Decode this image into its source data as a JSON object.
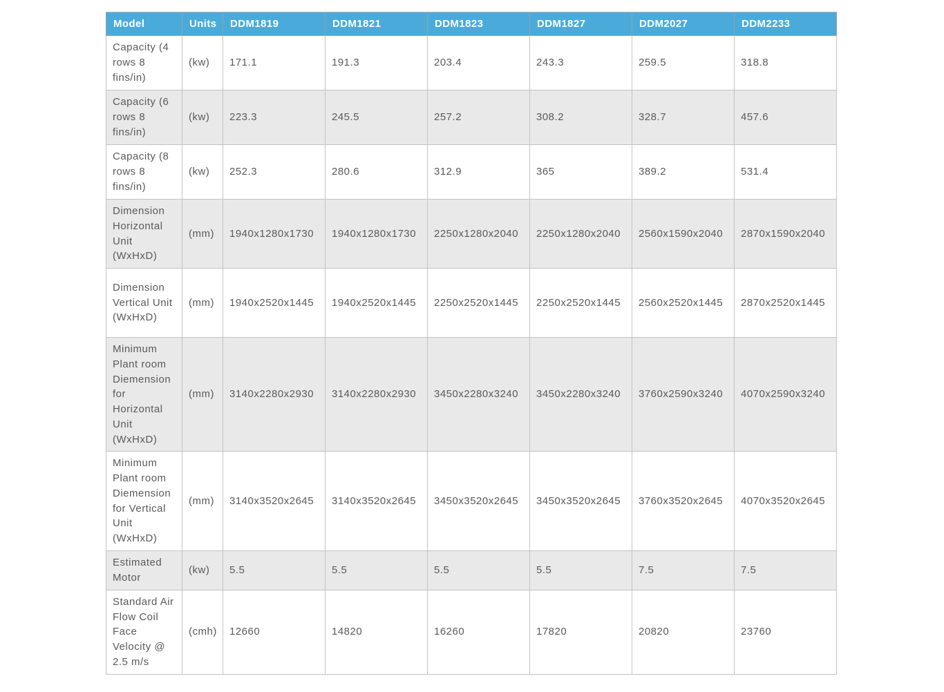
{
  "table": {
    "name": "ddm-model-specifications",
    "columns": [
      "Model",
      "Units",
      "DDM1819",
      "DDM1821",
      "DDM1823",
      "DDM1827",
      "DDM2027",
      "DDM2233"
    ],
    "rows": [
      {
        "model": "Capacity (4 rows 8 fins/in)",
        "units": "(kw)",
        "values": [
          "171.1",
          "191.3",
          "203.4",
          "243.3",
          "259.5",
          "318.8"
        ]
      },
      {
        "model": "Capacity (6 rows 8 fins/in)",
        "units": "(kw)",
        "values": [
          "223.3",
          "245.5",
          "257.2",
          "308.2",
          "328.7",
          "457.6"
        ]
      },
      {
        "model": "Capacity (8 rows 8 fins/in)",
        "units": "(kw)",
        "values": [
          "252.3",
          "280.6",
          "312.9",
          "365",
          "389.2",
          "531.4"
        ]
      },
      {
        "model": "Dimension Horizontal Unit (WxHxD)",
        "units": "(mm)",
        "values": [
          "1940x1280x1730",
          "1940x1280x1730",
          "2250x1280x2040",
          "2250x1280x2040",
          "2560x1590x2040",
          "2870x1590x2040"
        ]
      },
      {
        "model": "Dimension Vertical Unit (WxHxD)",
        "units": "(mm)",
        "values": [
          "1940x2520x1445",
          "1940x2520x1445",
          "2250x2520x1445",
          "2250x2520x1445",
          "2560x2520x1445",
          "2870x2520x1445"
        ]
      },
      {
        "model": "Minimum Plant room Diemension for Horizontal Unit (WxHxD)",
        "units": "(mm)",
        "values": [
          "3140x2280x2930",
          "3140x2280x2930",
          "3450x2280x3240",
          "3450x2280x3240",
          "3760x2590x3240",
          "4070x2590x3240"
        ]
      },
      {
        "model": "Minimum Plant room Diemension for Vertical Unit (WxHxD)",
        "units": "(mm)",
        "values": [
          "3140x3520x2645",
          "3140x3520x2645",
          "3450x3520x2645",
          "3450x3520x2645",
          "3760x3520x2645",
          "4070x3520x2645"
        ]
      },
      {
        "model": "Estimated Motor",
        "units": "(kw)",
        "values": [
          "5.5",
          "5.5",
          "5.5",
          "5.5",
          "7.5",
          "7.5"
        ]
      },
      {
        "model": "Standard Air Flow Coil Face Velocity @ 2.5 m/s",
        "units": "(cmh)",
        "values": [
          "12660",
          "14820",
          "16260",
          "17820",
          "20820",
          "23760"
        ]
      }
    ],
    "colors": {
      "header_bg": "#4aabdb",
      "header_text": "#ffffff",
      "row_bg": "#ffffff",
      "row_alt_bg": "#e9e9e9",
      "cell_text": "#58595b",
      "border": "#c3c3c3"
    }
  }
}
